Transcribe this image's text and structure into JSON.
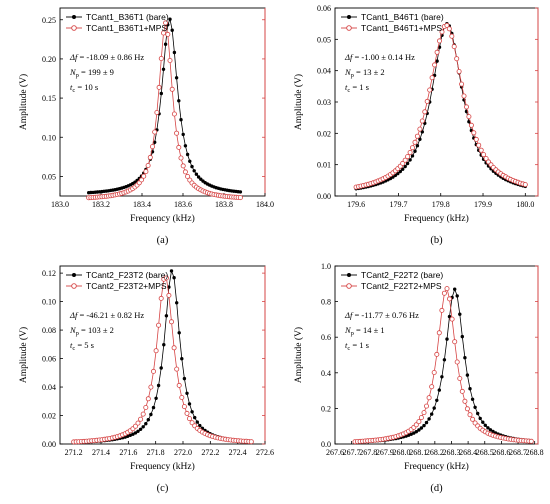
{
  "chart_data": [
    {
      "type": "scatter",
      "panel_label": "(a)",
      "xlabel": "Frequency (kHz)",
      "ylabel": "Amplitude (V)",
      "xlim": [
        183.0,
        184.0
      ],
      "ylim": [
        0.025,
        0.265
      ],
      "xticks": [
        "183.0",
        "183.2",
        "183.4",
        "183.6",
        "183.8",
        "184.0"
      ],
      "yticks": [
        "0.05",
        "0.10",
        "0.15",
        "0.20",
        "0.25"
      ],
      "data_x_range": [
        183.14,
        183.88
      ],
      "legend_position": "top-left",
      "series": [
        {
          "name": "TCant1_B36T1 (bare)",
          "marker": "filled-circle",
          "color": "#000000",
          "peak_x": 183.535,
          "peak_y": 0.251,
          "baseline": 0.026,
          "half_width": 0.048
        },
        {
          "name": "TCant1_B36T1+MPS",
          "marker": "open-circle",
          "color": "#d64545",
          "peak_x": 183.515,
          "peak_y": 0.246,
          "baseline": 0.02,
          "half_width": 0.042
        }
      ],
      "annotations": [
        {
          "var": "Δf",
          "text": " = -18.09 ± 0.86 Hz"
        },
        {
          "var": "N",
          "sub": "p",
          "text": " = 199 ± 9"
        },
        {
          "var": "t",
          "sub": "c",
          "text": " = 10 s"
        }
      ]
    },
    {
      "type": "scatter",
      "panel_label": "(b)",
      "xlabel": "Frequency (kHz)",
      "ylabel": "Amplitude (V)",
      "xlim": [
        179.55,
        180.03
      ],
      "ylim": [
        0.0,
        0.06
      ],
      "xticks": [
        "179.6",
        "179.7",
        "179.8",
        "179.9",
        "180.0"
      ],
      "yticks": [
        "0.00",
        "0.01",
        "0.02",
        "0.03",
        "0.04",
        "0.05",
        "0.06"
      ],
      "data_x_range": [
        179.6,
        180.0
      ],
      "legend_position": "top-left",
      "series": [
        {
          "name": "TCant1_B46T1 (bare)",
          "marker": "filled-circle",
          "color": "#000000",
          "peak_x": 179.815,
          "peak_y": 0.055,
          "baseline": 0.0,
          "half_width": 0.045
        },
        {
          "name": "TCant1_B46T1+MPS",
          "marker": "open-circle",
          "color": "#d64545",
          "peak_x": 179.813,
          "peak_y": 0.0545,
          "baseline": 0.0,
          "half_width": 0.05
        }
      ],
      "annotations": [
        {
          "var": "Δf",
          "text": " = -1.00 ± 0.14 Hz"
        },
        {
          "var": "N",
          "sub": "p",
          "text": " = 13 ± 2"
        },
        {
          "var": "t",
          "sub": "c",
          "text": " = 1 s"
        }
      ]
    },
    {
      "type": "scatter",
      "panel_label": "(c)",
      "xlabel": "Frequency (kHz)",
      "ylabel": "Amplitude (V)",
      "xlim": [
        271.1,
        272.6
      ],
      "ylim": [
        0.0,
        0.125
      ],
      "xticks": [
        "271.2",
        "271.4",
        "271.6",
        "271.8",
        "272.0",
        "272.2",
        "272.4",
        "272.6"
      ],
      "yticks": [
        "0.00",
        "0.02",
        "0.04",
        "0.06",
        "0.08",
        "0.10",
        "0.12"
      ],
      "data_x_range": [
        271.2,
        272.5
      ],
      "legend_position": "top-left",
      "series": [
        {
          "name": "TCant2_F23T2 (bare)",
          "marker": "filled-circle",
          "color": "#000000",
          "peak_x": 271.92,
          "peak_y": 0.122,
          "baseline": 0.0,
          "half_width": 0.07
        },
        {
          "name": "TCant2_F23T2+MPS",
          "marker": "open-circle",
          "color": "#d64545",
          "peak_x": 271.87,
          "peak_y": 0.118,
          "baseline": 0.0,
          "half_width": 0.075
        }
      ],
      "annotations": [
        {
          "var": "Δf",
          "text": " = -46.21 ± 0.82 Hz"
        },
        {
          "var": "N",
          "sub": "p",
          "text": " = 103 ± 2"
        },
        {
          "var": "t",
          "sub": "c",
          "text": " = 5 s"
        }
      ]
    },
    {
      "type": "scatter",
      "panel_label": "(d)",
      "xlabel": "Frequency (kHz)",
      "ylabel": "Amplitude (V)",
      "xlim": [
        267.6,
        268.82
      ],
      "ylim": [
        0.0,
        1.0
      ],
      "xticks": [
        "267.6",
        "267.7",
        "267.8",
        "267.9",
        "268.0",
        "268.1",
        "268.2",
        "268.3",
        "268.4",
        "268.5",
        "268.6",
        "268.7",
        "268.8"
      ],
      "yticks": [
        "0.0",
        "0.2",
        "0.4",
        "0.6",
        "0.8",
        "1.0"
      ],
      "data_x_range": [
        267.72,
        268.78
      ],
      "legend_position": "top-left",
      "series": [
        {
          "name": "TCant2_F22T2 (bare)",
          "marker": "filled-circle",
          "color": "#000000",
          "peak_x": 268.32,
          "peak_y": 0.87,
          "baseline": 0.0,
          "half_width": 0.068
        },
        {
          "name": "TCant2_F22T2+MPS",
          "marker": "open-circle",
          "color": "#d64545",
          "peak_x": 268.27,
          "peak_y": 0.875,
          "baseline": 0.0,
          "half_width": 0.068
        }
      ],
      "annotations": [
        {
          "var": "Δf",
          "text": " = -11.77 ± 0.76 Hz"
        },
        {
          "var": "N",
          "sub": "p",
          "text": " = 14 ± 1"
        },
        {
          "var": "t",
          "sub": "c",
          "text": " = 1 s"
        }
      ]
    }
  ]
}
